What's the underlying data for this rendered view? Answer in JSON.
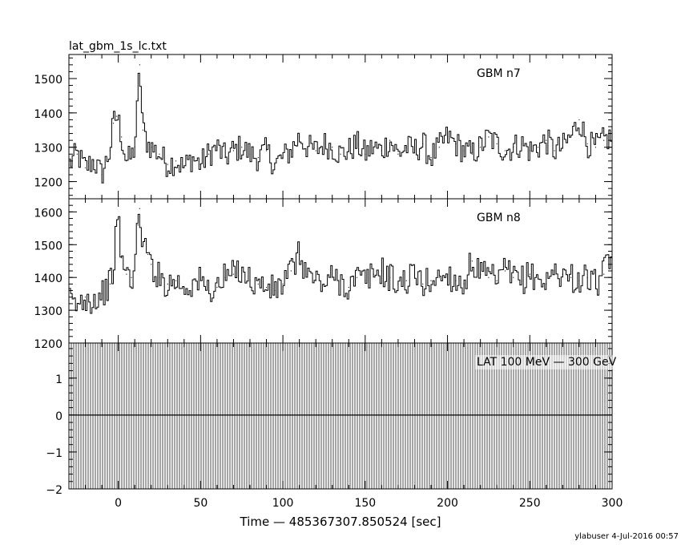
{
  "figure": {
    "title": "lat_gbm_1s_lc.txt",
    "footer": "ylabuser   4-Jul-2016 00:57"
  },
  "chart_data": [
    {
      "type": "line",
      "panel": "top",
      "label": "GBM n7",
      "xlim": [
        -30,
        300
      ],
      "ylim": [
        1150,
        1570
      ],
      "yticks": [
        1200,
        1300,
        1400,
        1500
      ],
      "series": [
        {
          "name": "GBM n7",
          "x": [
            -30,
            -25,
            -20,
            -15,
            -10,
            -5,
            -3,
            -1,
            0,
            2,
            5,
            8,
            10,
            12,
            13,
            15,
            18,
            20,
            25,
            30,
            35,
            40,
            45,
            50,
            55,
            60,
            65,
            70,
            75,
            80,
            85,
            90,
            95,
            100,
            105,
            110,
            115,
            120,
            125,
            130,
            135,
            140,
            145,
            150,
            155,
            160,
            165,
            170,
            175,
            180,
            185,
            190,
            195,
            200,
            205,
            210,
            215,
            220,
            225,
            230,
            235,
            240,
            245,
            250,
            255,
            260,
            265,
            270,
            275,
            280,
            285,
            290,
            295,
            300
          ],
          "values": [
            1250,
            1280,
            1240,
            1260,
            1220,
            1290,
            1370,
            1390,
            1380,
            1330,
            1260,
            1270,
            1300,
            1440,
            1540,
            1350,
            1310,
            1300,
            1280,
            1250,
            1260,
            1240,
            1270,
            1250,
            1280,
            1300,
            1270,
            1290,
            1300,
            1280,
            1270,
            1290,
            1250,
            1270,
            1290,
            1330,
            1300,
            1290,
            1310,
            1300,
            1280,
            1290,
            1310,
            1280,
            1300,
            1290,
            1320,
            1280,
            1300,
            1290,
            1310,
            1270,
            1300,
            1330,
            1310,
            1290,
            1280,
            1300,
            1330,
            1310,
            1290,
            1300,
            1310,
            1290,
            1300,
            1320,
            1290,
            1300,
            1330,
            1380,
            1310,
            1300,
            1320,
            1330
          ]
        }
      ]
    },
    {
      "type": "line",
      "panel": "middle",
      "label": "GBM n8",
      "xlim": [
        -30,
        300
      ],
      "ylim": [
        1200,
        1640
      ],
      "yticks": [
        1200,
        1300,
        1400,
        1500,
        1600
      ],
      "series": [
        {
          "name": "GBM n8",
          "x": [
            -30,
            -25,
            -20,
            -15,
            -10,
            -5,
            -3,
            -1,
            0,
            2,
            5,
            8,
            10,
            12,
            13,
            15,
            18,
            20,
            25,
            30,
            35,
            40,
            45,
            50,
            55,
            60,
            65,
            70,
            75,
            80,
            85,
            90,
            95,
            100,
            105,
            110,
            115,
            120,
            125,
            130,
            135,
            140,
            145,
            150,
            155,
            160,
            165,
            170,
            175,
            180,
            185,
            190,
            195,
            200,
            205,
            210,
            215,
            220,
            225,
            230,
            235,
            240,
            245,
            250,
            255,
            260,
            265,
            270,
            275,
            280,
            285,
            290,
            295,
            300
          ],
          "values": [
            1330,
            1310,
            1340,
            1330,
            1350,
            1380,
            1420,
            1560,
            1580,
            1460,
            1410,
            1400,
            1420,
            1560,
            1610,
            1500,
            1470,
            1440,
            1400,
            1380,
            1390,
            1370,
            1380,
            1390,
            1360,
            1370,
            1400,
            1410,
            1430,
            1390,
            1380,
            1370,
            1360,
            1380,
            1420,
            1470,
            1410,
            1390,
            1380,
            1400,
            1390,
            1370,
            1400,
            1390,
            1410,
            1420,
            1400,
            1380,
            1390,
            1410,
            1380,
            1390,
            1400,
            1410,
            1390,
            1380,
            1450,
            1410,
            1400,
            1390,
            1420,
            1400,
            1390,
            1410,
            1400,
            1380,
            1420,
            1410,
            1400,
            1390,
            1400,
            1380,
            1410,
            1470
          ]
        }
      ]
    },
    {
      "type": "line",
      "panel": "bottom",
      "label": "LAT 100 MeV — 300 GeV",
      "xlim": [
        -30,
        300
      ],
      "ylim": [
        -2,
        1.95
      ],
      "yticks": [
        -2,
        -1,
        0,
        1
      ],
      "xticks": [
        0,
        50,
        100,
        150,
        200,
        250,
        300
      ],
      "xlabel": "Time — 485367307.850524 [sec]",
      "series": [
        {
          "name": "LAT 100 MeV — 300 GeV",
          "x": [
            -30,
            300
          ],
          "values": [
            0,
            0
          ]
        }
      ]
    }
  ]
}
